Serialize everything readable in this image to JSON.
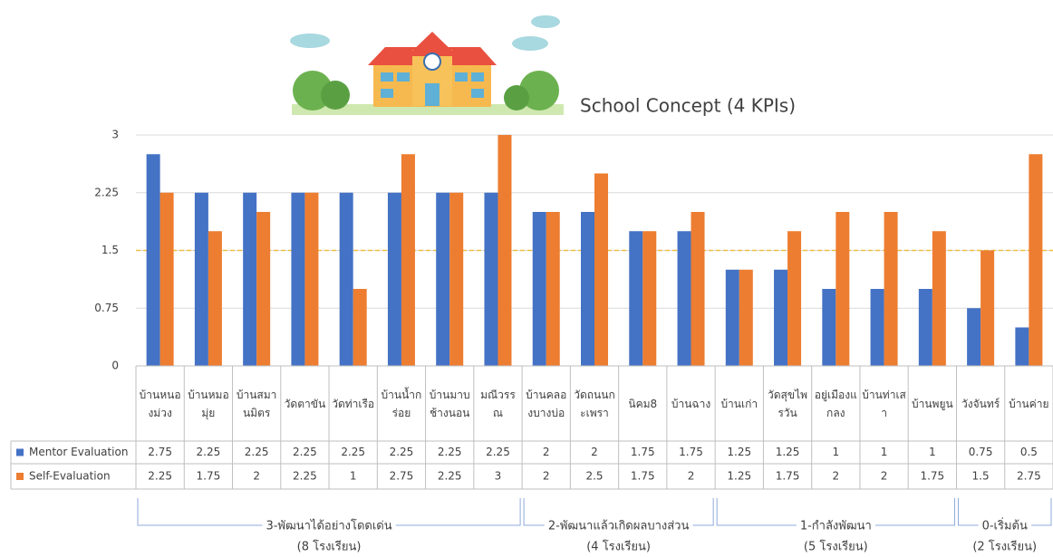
{
  "chart_data": {
    "type": "bar",
    "title": "School Concept (4 KPIs)",
    "categories": [
      "บ้านหนองม่วง",
      "บ้านหมอมุ่ย",
      "บ้านสมานมิตร",
      "วัดตาขัน",
      "วัดท่าเรือ",
      "บ้านน้ำกร่อย",
      "บ้านมาบช้างนอน",
      "มณีวรรณ",
      "บ้านคลองบางบ่อ",
      "วัดถนนกะเพรา",
      "นิคม8",
      "บ้านฉาง",
      "บ้านเก่า",
      "วัดสุขไพรวัน",
      "อยู่เมืองแกลง",
      "บ้านท่าเสา",
      "บ้านพยูน",
      "วังจันทร์",
      "บ้านค่าย"
    ],
    "series": [
      {
        "name": "Mentor Evaluation",
        "color": "#4472c4",
        "values": [
          2.75,
          2.25,
          2.25,
          2.25,
          2.25,
          2.25,
          2.25,
          2.25,
          2,
          2,
          1.75,
          1.75,
          1.25,
          1.25,
          1,
          1,
          1,
          0.75,
          0.5
        ]
      },
      {
        "name": "Self-Evaluation",
        "color": "#ed7d31",
        "values": [
          2.25,
          1.75,
          2,
          2.25,
          1,
          2.75,
          2.25,
          3,
          2,
          2.5,
          1.75,
          2,
          1.25,
          1.75,
          2,
          2,
          1.75,
          1.5,
          2.75
        ]
      }
    ],
    "ylim": [
      0,
      3
    ],
    "yticks": [
      0,
      0.75,
      1.5,
      2.25,
      3
    ],
    "grid": true,
    "reference_line": {
      "value": 1.5,
      "color": "#f0c040"
    },
    "groups": [
      {
        "label": "3-พัฒนาได้อย่างโดดเด่น",
        "note": "(8 โรงเรียน)",
        "members": 8
      },
      {
        "label": "2-พัฒนาแล้วเกิดผลบางส่วน",
        "note": "(4 โรงเรียน)",
        "members": 4
      },
      {
        "label": "1-กำลังพัฒนา",
        "note": "(5 โรงเรียน)",
        "members": 5
      },
      {
        "label": "0-เริ่มต้น",
        "note": "(2 โรงเรียน)",
        "members": 2
      }
    ]
  }
}
